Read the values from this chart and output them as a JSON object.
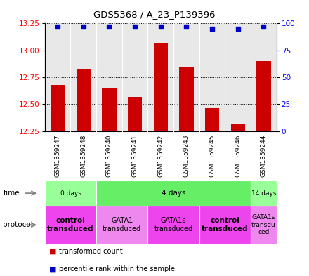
{
  "title": "GDS5368 / A_23_P139396",
  "samples": [
    "GSM1359247",
    "GSM1359248",
    "GSM1359240",
    "GSM1359241",
    "GSM1359242",
    "GSM1359243",
    "GSM1359245",
    "GSM1359246",
    "GSM1359244"
  ],
  "transformed_counts": [
    12.68,
    12.83,
    12.65,
    12.57,
    13.07,
    12.85,
    12.46,
    12.31,
    12.9
  ],
  "percentile_ranks": [
    97,
    97,
    97,
    97,
    97,
    97,
    95,
    95,
    97
  ],
  "ylim": [
    12.25,
    13.25
  ],
  "yticks": [
    12.25,
    12.5,
    12.75,
    13.0,
    13.25
  ],
  "right_yticks": [
    0,
    25,
    50,
    75,
    100
  ],
  "bar_color": "#cc0000",
  "dot_color": "#0000cc",
  "bar_bottom": 12.25,
  "time_groups": [
    {
      "label": "0 days",
      "start": 0,
      "end": 2,
      "color": "#99ff99"
    },
    {
      "label": "4 days",
      "start": 2,
      "end": 8,
      "color": "#66ee66"
    },
    {
      "label": "14 days",
      "start": 8,
      "end": 9,
      "color": "#99ff99"
    }
  ],
  "protocol_groups": [
    {
      "label": "control\ntransduced",
      "start": 0,
      "end": 2,
      "color": "#ee44ee",
      "fontsize": 7.5,
      "bold": true
    },
    {
      "label": "GATA1\ntransduced",
      "start": 2,
      "end": 4,
      "color": "#ee88ee",
      "fontsize": 7,
      "bold": false
    },
    {
      "label": "GATA1s\ntransduced",
      "start": 4,
      "end": 6,
      "color": "#ee44ee",
      "fontsize": 7,
      "bold": false
    },
    {
      "label": "control\ntransduced",
      "start": 6,
      "end": 8,
      "color": "#ee44ee",
      "fontsize": 7.5,
      "bold": true
    },
    {
      "label": "GATA1s\ntransdu\nced",
      "start": 8,
      "end": 9,
      "color": "#ee88ee",
      "fontsize": 6.5,
      "bold": false
    }
  ],
  "sample_bg_color": "#d0d0d0",
  "plot_bg_color": "#e8e8e8"
}
